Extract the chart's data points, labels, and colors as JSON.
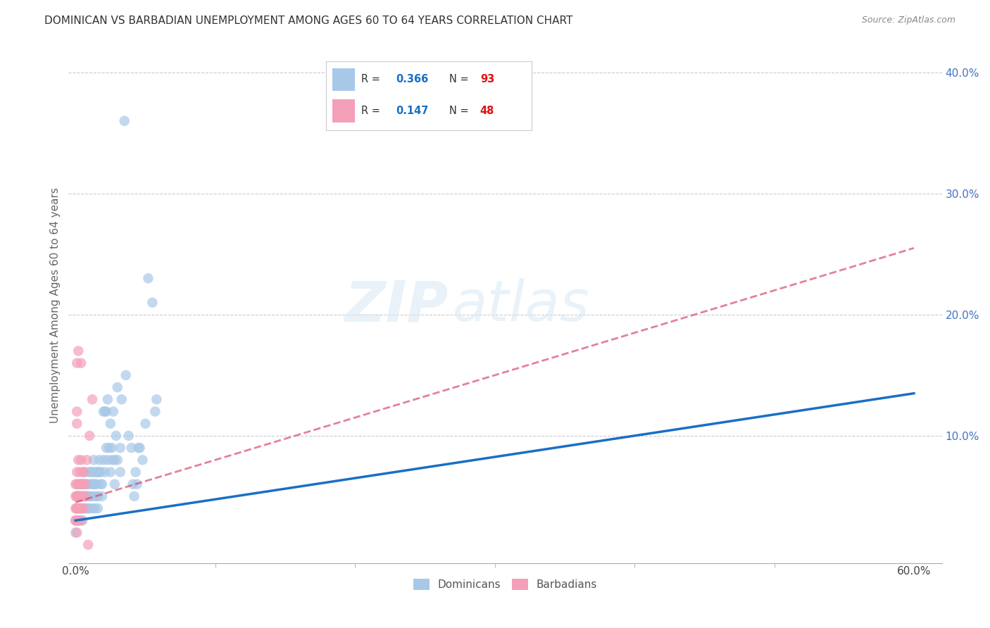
{
  "title": "DOMINICAN VS BARBADIAN UNEMPLOYMENT AMONG AGES 60 TO 64 YEARS CORRELATION CHART",
  "source": "Source: ZipAtlas.com",
  "ylabel": "Unemployment Among Ages 60 to 64 years",
  "xlim": [
    -0.005,
    0.62
  ],
  "ylim": [
    -0.005,
    0.42
  ],
  "xticks": [
    0.0,
    0.6
  ],
  "yticks": [
    0.1,
    0.2,
    0.3,
    0.4
  ],
  "xticklabels": [
    "0.0%",
    "60.0%"
  ],
  "yticklabels": [
    "10.0%",
    "20.0%",
    "30.0%",
    "40.0%"
  ],
  "blue_R": "0.366",
  "blue_N": "93",
  "pink_R": "0.147",
  "pink_N": "48",
  "blue_color": "#a8c8e8",
  "pink_color": "#f4a0b8",
  "blue_line_color": "#1a6fc4",
  "pink_line_color": "#d44060",
  "watermark_zip": "ZIP",
  "watermark_atlas": "atlas",
  "blue_scatter": [
    [
      0.0,
      0.03
    ],
    [
      0.0,
      0.02
    ],
    [
      0.001,
      0.04
    ],
    [
      0.001,
      0.05
    ],
    [
      0.002,
      0.03
    ],
    [
      0.002,
      0.04
    ],
    [
      0.002,
      0.05
    ],
    [
      0.003,
      0.04
    ],
    [
      0.003,
      0.05
    ],
    [
      0.003,
      0.03
    ],
    [
      0.004,
      0.04
    ],
    [
      0.004,
      0.05
    ],
    [
      0.004,
      0.06
    ],
    [
      0.005,
      0.03
    ],
    [
      0.005,
      0.05
    ],
    [
      0.005,
      0.06
    ],
    [
      0.006,
      0.04
    ],
    [
      0.006,
      0.06
    ],
    [
      0.007,
      0.05
    ],
    [
      0.007,
      0.06
    ],
    [
      0.007,
      0.07
    ],
    [
      0.008,
      0.05
    ],
    [
      0.008,
      0.06
    ],
    [
      0.009,
      0.04
    ],
    [
      0.009,
      0.06
    ],
    [
      0.01,
      0.05
    ],
    [
      0.01,
      0.07
    ],
    [
      0.011,
      0.06
    ],
    [
      0.011,
      0.07
    ],
    [
      0.012,
      0.06
    ],
    [
      0.012,
      0.07
    ],
    [
      0.013,
      0.06
    ],
    [
      0.013,
      0.08
    ],
    [
      0.014,
      0.06
    ],
    [
      0.014,
      0.07
    ],
    [
      0.015,
      0.07
    ],
    [
      0.015,
      0.06
    ],
    [
      0.016,
      0.07
    ],
    [
      0.016,
      0.05
    ],
    [
      0.017,
      0.08
    ],
    [
      0.017,
      0.07
    ],
    [
      0.018,
      0.07
    ],
    [
      0.019,
      0.06
    ],
    [
      0.02,
      0.12
    ],
    [
      0.02,
      0.08
    ],
    [
      0.021,
      0.12
    ],
    [
      0.022,
      0.09
    ],
    [
      0.022,
      0.12
    ],
    [
      0.023,
      0.13
    ],
    [
      0.024,
      0.09
    ],
    [
      0.025,
      0.11
    ],
    [
      0.026,
      0.09
    ],
    [
      0.027,
      0.12
    ],
    [
      0.028,
      0.08
    ],
    [
      0.029,
      0.1
    ],
    [
      0.03,
      0.14
    ],
    [
      0.032,
      0.09
    ],
    [
      0.033,
      0.13
    ],
    [
      0.035,
      0.36
    ],
    [
      0.036,
      0.15
    ],
    [
      0.038,
      0.1
    ],
    [
      0.04,
      0.09
    ],
    [
      0.041,
      0.06
    ],
    [
      0.042,
      0.05
    ],
    [
      0.043,
      0.07
    ],
    [
      0.044,
      0.06
    ],
    [
      0.045,
      0.09
    ],
    [
      0.046,
      0.09
    ],
    [
      0.048,
      0.08
    ],
    [
      0.05,
      0.11
    ],
    [
      0.052,
      0.23
    ],
    [
      0.055,
      0.21
    ],
    [
      0.057,
      0.12
    ],
    [
      0.058,
      0.13
    ],
    [
      0.005,
      0.04
    ],
    [
      0.006,
      0.05
    ],
    [
      0.008,
      0.04
    ],
    [
      0.009,
      0.05
    ],
    [
      0.01,
      0.04
    ],
    [
      0.011,
      0.05
    ],
    [
      0.012,
      0.04
    ],
    [
      0.013,
      0.05
    ],
    [
      0.014,
      0.04
    ],
    [
      0.015,
      0.05
    ],
    [
      0.016,
      0.04
    ],
    [
      0.018,
      0.06
    ],
    [
      0.019,
      0.05
    ],
    [
      0.021,
      0.07
    ],
    [
      0.023,
      0.08
    ],
    [
      0.025,
      0.07
    ],
    [
      0.026,
      0.08
    ],
    [
      0.028,
      0.06
    ],
    [
      0.03,
      0.08
    ],
    [
      0.032,
      0.07
    ]
  ],
  "pink_scatter": [
    [
      0.0,
      0.04
    ],
    [
      0.0,
      0.03
    ],
    [
      0.0,
      0.05
    ],
    [
      0.0,
      0.06
    ],
    [
      0.001,
      0.04
    ],
    [
      0.001,
      0.05
    ],
    [
      0.001,
      0.03
    ],
    [
      0.001,
      0.06
    ],
    [
      0.001,
      0.07
    ],
    [
      0.001,
      0.04
    ],
    [
      0.001,
      0.05
    ],
    [
      0.001,
      0.03
    ],
    [
      0.001,
      0.02
    ],
    [
      0.001,
      0.04
    ],
    [
      0.001,
      0.16
    ],
    [
      0.002,
      0.05
    ],
    [
      0.002,
      0.04
    ],
    [
      0.002,
      0.03
    ],
    [
      0.002,
      0.06
    ],
    [
      0.002,
      0.05
    ],
    [
      0.002,
      0.08
    ],
    [
      0.002,
      0.04
    ],
    [
      0.002,
      0.17
    ],
    [
      0.003,
      0.05
    ],
    [
      0.003,
      0.07
    ],
    [
      0.003,
      0.04
    ],
    [
      0.003,
      0.06
    ],
    [
      0.003,
      0.05
    ],
    [
      0.003,
      0.04
    ],
    [
      0.004,
      0.08
    ],
    [
      0.004,
      0.06
    ],
    [
      0.004,
      0.05
    ],
    [
      0.004,
      0.04
    ],
    [
      0.004,
      0.03
    ],
    [
      0.004,
      0.16
    ],
    [
      0.005,
      0.06
    ],
    [
      0.005,
      0.07
    ],
    [
      0.005,
      0.05
    ],
    [
      0.006,
      0.07
    ],
    [
      0.006,
      0.04
    ],
    [
      0.007,
      0.06
    ],
    [
      0.007,
      0.05
    ],
    [
      0.008,
      0.08
    ],
    [
      0.009,
      0.01
    ],
    [
      0.01,
      0.1
    ],
    [
      0.012,
      0.13
    ],
    [
      0.001,
      0.12
    ],
    [
      0.001,
      0.11
    ]
  ],
  "blue_line_x0": 0.0,
  "blue_line_x1": 0.6,
  "blue_line_y0": 0.03,
  "blue_line_y1": 0.135,
  "pink_line_x0": 0.0,
  "pink_line_x1": 0.6,
  "pink_line_y0": 0.045,
  "pink_line_y1": 0.255
}
